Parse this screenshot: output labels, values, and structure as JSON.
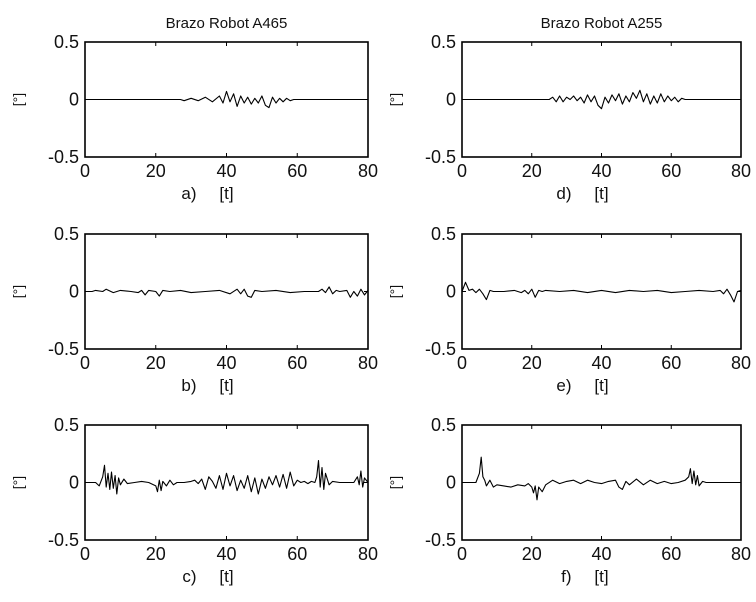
{
  "figure": {
    "background": "#ffffff",
    "line_color": "#000000"
  },
  "chart_data": [
    {
      "type": "line",
      "panel": "a",
      "title": "Brazo Robot A465",
      "caption": "a)",
      "xlabel": "[t]",
      "ylabel": "[°]",
      "xlim": [
        0,
        80
      ],
      "ylim": [
        -0.5,
        0.5
      ],
      "xticks": [
        "0",
        "20",
        "40",
        "60",
        "80"
      ],
      "yticks": [
        "0.5",
        "0",
        "-0.5"
      ],
      "grid": false,
      "series": [
        {
          "x": [
            0,
            27,
            28,
            30,
            32,
            34,
            36,
            38,
            39,
            40,
            41,
            42,
            43,
            44,
            45,
            46,
            47,
            48,
            49,
            50,
            51,
            52,
            53,
            54,
            55,
            56,
            57,
            58,
            59,
            60,
            80
          ],
          "y": [
            0,
            0,
            -0.01,
            0.01,
            -0.01,
            0.02,
            -0.02,
            0.03,
            -0.03,
            0.07,
            -0.02,
            0.05,
            -0.06,
            0.03,
            -0.03,
            0.02,
            -0.04,
            0.01,
            -0.03,
            0.03,
            -0.05,
            -0.07,
            0.02,
            -0.03,
            0.01,
            -0.02,
            0.01,
            -0.01,
            0,
            0,
            0
          ]
        }
      ]
    },
    {
      "type": "line",
      "panel": "b",
      "title": "",
      "caption": "b)",
      "xlabel": "[t]",
      "ylabel": "[°]",
      "xlim": [
        0,
        80
      ],
      "ylim": [
        -0.5,
        0.5
      ],
      "xticks": [
        "0",
        "20",
        "40",
        "60",
        "80"
      ],
      "yticks": [
        "0.5",
        "0",
        "-0.5"
      ],
      "grid": false,
      "series": [
        {
          "x": [
            0,
            2,
            3,
            5,
            6,
            8,
            10,
            13,
            15,
            16,
            17,
            18,
            20,
            21,
            22,
            24,
            27,
            30,
            34,
            38,
            41,
            43,
            44,
            45,
            46,
            47,
            48,
            50,
            54,
            58,
            62,
            66,
            67,
            68,
            69,
            70,
            71,
            72,
            74,
            75,
            76,
            77,
            78,
            79,
            80
          ],
          "y": [
            0,
            0,
            0.01,
            0,
            0.02,
            -0.01,
            0.01,
            0,
            -0.01,
            0.01,
            -0.03,
            0.01,
            0,
            -0.04,
            0.01,
            0,
            0.01,
            -0.01,
            0,
            0.01,
            -0.02,
            0.02,
            -0.02,
            0.02,
            -0.04,
            -0.05,
            0.01,
            0,
            0.01,
            -0.01,
            0,
            0,
            0.02,
            -0.01,
            0.04,
            -0.02,
            0.01,
            0,
            0.01,
            -0.05,
            0,
            -0.04,
            0.02,
            -0.03,
            0.01
          ]
        }
      ]
    },
    {
      "type": "line",
      "panel": "c",
      "title": "",
      "caption": "c)",
      "xlabel": "[t]",
      "ylabel": "[°]",
      "xlim": [
        0,
        80
      ],
      "ylim": [
        -0.5,
        0.5
      ],
      "xticks": [
        "0",
        "20",
        "40",
        "60",
        "80"
      ],
      "yticks": [
        "0.5",
        "0",
        "-0.5"
      ],
      "grid": false,
      "series": [
        {
          "x": [
            0,
            3,
            4,
            5,
            5.5,
            6,
            6.5,
            7,
            7.5,
            8,
            8.5,
            9,
            9.5,
            10,
            11,
            12,
            14,
            16,
            18,
            20,
            20.5,
            21,
            21.5,
            22,
            23,
            24,
            25,
            26,
            28,
            30,
            31,
            32,
            33,
            34,
            35,
            36,
            37,
            38,
            39,
            40,
            41,
            42,
            43,
            44,
            45,
            46,
            47,
            48,
            49,
            50,
            51,
            52,
            53,
            54,
            55,
            56,
            57,
            58,
            59,
            60,
            61,
            62,
            63,
            64,
            65,
            65.5,
            66,
            66.5,
            67,
            67.5,
            68,
            69,
            70,
            72,
            74,
            76,
            77,
            77.5,
            78,
            78.5,
            79,
            80
          ],
          "y": [
            0,
            0,
            -0.03,
            0.05,
            0.15,
            -0.04,
            0.08,
            -0.06,
            0.09,
            -0.05,
            0.06,
            -0.1,
            0.04,
            -0.02,
            0.03,
            -0.01,
            0,
            0.01,
            0,
            -0.03,
            -0.08,
            0.02,
            -0.07,
            0.01,
            -0.03,
            0.02,
            -0.02,
            0,
            0,
            0.01,
            0.02,
            -0.01,
            0.03,
            -0.06,
            0.05,
            0.01,
            -0.05,
            0.06,
            -0.06,
            0.08,
            -0.03,
            0.06,
            -0.07,
            0.02,
            -0.05,
            0.06,
            -0.08,
            0.04,
            -0.1,
            0.03,
            -0.05,
            0.05,
            -0.02,
            0.06,
            -0.04,
            0.07,
            -0.05,
            0.09,
            -0.03,
            0.02,
            0,
            0.01,
            -0.01,
            0.01,
            0,
            0.05,
            0.19,
            -0.04,
            0.13,
            -0.06,
            0.08,
            -0.02,
            0.01,
            0,
            0,
            0,
            0.05,
            -0.02,
            0.1,
            -0.04,
            0.04,
            0
          ]
        }
      ]
    },
    {
      "type": "line",
      "panel": "d",
      "title": "Brazo Robot A255",
      "caption": "d)",
      "xlabel": "[t]",
      "ylabel": "[°]",
      "xlim": [
        0,
        80
      ],
      "ylim": [
        -0.5,
        0.5
      ],
      "xticks": [
        "0",
        "20",
        "40",
        "60",
        "80"
      ],
      "yticks": [
        "0.5",
        "0",
        "-0.5"
      ],
      "grid": false,
      "series": [
        {
          "x": [
            0,
            25,
            26,
            27,
            28,
            29,
            30,
            31,
            32,
            33,
            34,
            35,
            36,
            37,
            38,
            39,
            40,
            41,
            42,
            43,
            44,
            45,
            46,
            47,
            48,
            49,
            50,
            51,
            52,
            53,
            54,
            55,
            56,
            57,
            58,
            59,
            60,
            61,
            62,
            63,
            64,
            65,
            80
          ],
          "y": [
            0,
            0,
            0.02,
            -0.02,
            0.03,
            -0.02,
            0.02,
            0,
            0.03,
            -0.01,
            0.02,
            -0.03,
            0.04,
            -0.02,
            0.03,
            -0.05,
            -0.08,
            0.02,
            -0.03,
            0.04,
            -0.01,
            0.05,
            -0.04,
            0.03,
            -0.02,
            0.06,
            0.01,
            0.08,
            -0.02,
            0.05,
            -0.04,
            0.03,
            -0.03,
            0.05,
            -0.02,
            0.03,
            -0.01,
            0.02,
            -0.02,
            0.01,
            0,
            0,
            0
          ]
        }
      ]
    },
    {
      "type": "line",
      "panel": "e",
      "title": "",
      "caption": "e)",
      "xlabel": "[t]",
      "ylabel": "[°]",
      "xlim": [
        0,
        80
      ],
      "ylim": [
        -0.5,
        0.5
      ],
      "xticks": [
        "0",
        "20",
        "40",
        "60",
        "80"
      ],
      "yticks": [
        "0.5",
        "0",
        "-0.5"
      ],
      "grid": false,
      "series": [
        {
          "x": [
            0,
            1,
            2,
            3,
            4,
            5,
            6,
            7,
            8,
            9,
            12,
            15,
            17,
            18,
            19,
            20,
            21,
            22,
            23,
            24,
            28,
            32,
            36,
            40,
            44,
            48,
            52,
            56,
            60,
            64,
            68,
            72,
            74,
            75,
            76,
            77,
            78,
            79,
            80
          ],
          "y": [
            0,
            0.08,
            0.01,
            0.02,
            -0.01,
            0.02,
            -0.02,
            -0.07,
            0.01,
            0,
            0,
            0.01,
            -0.01,
            0.01,
            -0.02,
            0.02,
            -0.05,
            0.01,
            0,
            0.01,
            0,
            0.01,
            -0.01,
            0.01,
            -0.01,
            0.01,
            0,
            0.01,
            -0.01,
            0,
            0.01,
            0,
            0.01,
            -0.02,
            0.02,
            -0.03,
            -0.09,
            0,
            0.01
          ]
        }
      ]
    },
    {
      "type": "line",
      "panel": "f",
      "title": "",
      "caption": "f)",
      "xlabel": "[t]",
      "ylabel": "[°]",
      "xlim": [
        0,
        80
      ],
      "ylim": [
        -0.5,
        0.5
      ],
      "xticks": [
        "0",
        "20",
        "40",
        "60",
        "80"
      ],
      "yticks": [
        "0.5",
        "0",
        "-0.5"
      ],
      "grid": false,
      "series": [
        {
          "x": [
            0,
            4,
            5,
            5.5,
            6,
            6.5,
            7,
            8,
            9,
            10,
            12,
            14,
            16,
            18,
            19,
            20,
            20.5,
            21,
            21.5,
            22,
            23,
            24,
            26,
            28,
            30,
            32,
            34,
            36,
            38,
            40,
            42,
            44,
            45,
            46,
            47,
            48,
            50,
            52,
            54,
            56,
            58,
            60,
            62,
            64,
            65,
            65.5,
            66,
            66.5,
            67,
            67.5,
            68,
            69,
            70,
            80
          ],
          "y": [
            0,
            0,
            0.08,
            0.22,
            0.05,
            0.02,
            -0.03,
            0.02,
            -0.04,
            -0.02,
            -0.03,
            -0.04,
            -0.02,
            -0.03,
            -0.01,
            -0.04,
            -0.09,
            -0.03,
            -0.15,
            -0.04,
            -0.08,
            -0.02,
            0.02,
            -0.01,
            0.01,
            0.02,
            -0.01,
            0.02,
            0,
            -0.01,
            0.01,
            0.02,
            -0.04,
            -0.06,
            0.01,
            -0.02,
            0.03,
            -0.02,
            0.02,
            -0.01,
            0.01,
            -0.01,
            0,
            0.02,
            0.05,
            0.12,
            -0.01,
            0.1,
            -0.02,
            0.06,
            -0.03,
            0.01,
            0,
            0
          ]
        }
      ]
    }
  ]
}
